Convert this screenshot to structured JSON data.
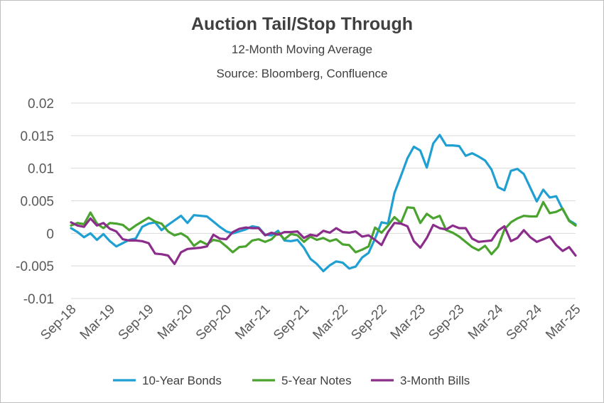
{
  "chart_data": {
    "type": "line",
    "title": "Auction Tail/Stop Through",
    "subtitle": "12-Month Moving Average",
    "source": "Source: Bloomberg, Confluence",
    "xlabel": "",
    "ylabel": "",
    "ylim": [
      -0.01,
      0.02
    ],
    "yticks": [
      {
        "v": 0.02,
        "label": "0.02"
      },
      {
        "v": 0.015,
        "label": "0.015"
      },
      {
        "v": 0.01,
        "label": "0.01"
      },
      {
        "v": 0.005,
        "label": "0.005"
      },
      {
        "v": 0,
        "label": "0"
      },
      {
        "v": -0.005,
        "label": "-0.005"
      },
      {
        "v": -0.01,
        "label": "-0.01"
      }
    ],
    "xticks": [
      {
        "i": 0,
        "label": "Sep-18"
      },
      {
        "i": 6,
        "label": "Mar-19"
      },
      {
        "i": 12,
        "label": "Sep-19"
      },
      {
        "i": 18,
        "label": "Mar-20"
      },
      {
        "i": 24,
        "label": "Sep-20"
      },
      {
        "i": 30,
        "label": "Mar-21"
      },
      {
        "i": 36,
        "label": "Sep-21"
      },
      {
        "i": 42,
        "label": "Mar-22"
      },
      {
        "i": 48,
        "label": "Sep-22"
      },
      {
        "i": 54,
        "label": "Mar-23"
      },
      {
        "i": 60,
        "label": "Sep-23"
      },
      {
        "i": 66,
        "label": "Mar-24"
      },
      {
        "i": 72,
        "label": "Sep-24"
      },
      {
        "i": 78,
        "label": "Mar-25"
      }
    ],
    "n_points": 79,
    "legend_position": "bottom",
    "grid": "horizontal",
    "series": [
      {
        "name": "10-Year Bonds",
        "color": "#1f9fd2",
        "values": [
          0.0008,
          0.0002,
          -0.0006,
          0.0,
          -0.001,
          -0.0001,
          -0.0012,
          -0.002,
          -0.0015,
          -0.001,
          -0.0008,
          0.001,
          0.0015,
          0.0017,
          0.0005,
          0.0013,
          0.002,
          0.0027,
          0.0016,
          0.0028,
          0.0027,
          0.0026,
          0.0018,
          0.001,
          0.0003,
          0.0,
          0.0003,
          0.0006,
          0.0011,
          0.0009,
          -0.0002,
          -0.0003,
          0.0004,
          -0.0011,
          -0.0012,
          -0.001,
          -0.0022,
          -0.0039,
          -0.0047,
          -0.0058,
          -0.0049,
          -0.0043,
          -0.0045,
          -0.0054,
          -0.0051,
          -0.0037,
          -0.003,
          -0.0008,
          0.0017,
          0.0015,
          0.0062,
          0.0088,
          0.0115,
          0.0133,
          0.0127,
          0.0101,
          0.0138,
          0.0151,
          0.0135,
          0.0135,
          0.0134,
          0.0119,
          0.0123,
          0.0118,
          0.0112,
          0.0098,
          0.0071,
          0.0066,
          0.0096,
          0.0099,
          0.0091,
          0.007,
          0.0049,
          0.0067,
          0.0055,
          0.0057,
          0.0037,
          0.002,
          0.0014
        ]
      },
      {
        "name": "5-Year Notes",
        "color": "#4aa32e",
        "values": [
          0.0012,
          0.0016,
          0.0014,
          0.0032,
          0.0015,
          0.0008,
          0.0016,
          0.0015,
          0.0013,
          0.0005,
          0.0012,
          0.0018,
          0.0024,
          0.0018,
          0.0015,
          0.0003,
          -0.0003,
          0.0,
          -0.0006,
          -0.0019,
          -0.0012,
          -0.0017,
          -0.001,
          -0.0012,
          -0.002,
          -0.0029,
          -0.0021,
          -0.002,
          -0.0011,
          -0.0009,
          -0.0013,
          -0.0009,
          0.0001,
          -0.0009,
          -0.0001,
          -0.0003,
          -0.0013,
          -0.0005,
          -0.001,
          -0.0007,
          -0.0012,
          -0.0009,
          -0.0017,
          -0.0018,
          -0.0029,
          -0.0025,
          -0.002,
          0.0009,
          0.0001,
          0.0012,
          0.0025,
          0.0016,
          0.004,
          0.0039,
          0.0016,
          0.003,
          0.0023,
          0.0027,
          0.0005,
          0.0001,
          -0.0005,
          -0.0013,
          -0.0021,
          -0.0026,
          -0.0019,
          -0.0032,
          -0.0021,
          0.0006,
          0.0017,
          0.0023,
          0.0027,
          0.0026,
          0.0026,
          0.0048,
          0.0031,
          0.0033,
          0.0038,
          0.0019,
          0.0012
        ]
      },
      {
        "name": "3-Month Bills",
        "color": "#8b2d8b",
        "values": [
          0.0017,
          0.0012,
          0.001,
          0.0023,
          0.0012,
          0.0016,
          0.0007,
          0.0003,
          -0.0009,
          -0.0011,
          -0.0011,
          -0.0012,
          -0.0015,
          -0.0031,
          -0.0032,
          -0.0034,
          -0.0047,
          -0.0029,
          -0.0024,
          -0.0023,
          -0.0022,
          -0.002,
          -0.0002,
          -0.0008,
          -0.0009,
          0.0002,
          0.0007,
          0.0009,
          0.0008,
          0.0008,
          -0.0003,
          0.0001,
          -0.0002,
          0.0002,
          0.0002,
          0.0003,
          -0.0007,
          -0.0002,
          -0.0004,
          0.0004,
          0.0001,
          0.0008,
          0.0002,
          0.0001,
          0.0003,
          -0.0005,
          -0.0003,
          -0.001,
          -0.0018,
          0.0002,
          0.0016,
          0.0015,
          0.0011,
          -0.0012,
          -0.0022,
          -0.0007,
          0.0013,
          0.0008,
          0.0006,
          0.0012,
          0.0008,
          0.0008,
          -0.0008,
          -0.0013,
          -0.0012,
          -0.0011,
          0.0004,
          0.0011,
          -0.0012,
          -0.0007,
          0.0005,
          -0.0006,
          -0.0013,
          -0.0009,
          -0.0005,
          -0.0018,
          -0.0027,
          -0.0021,
          -0.0034
        ]
      }
    ]
  }
}
